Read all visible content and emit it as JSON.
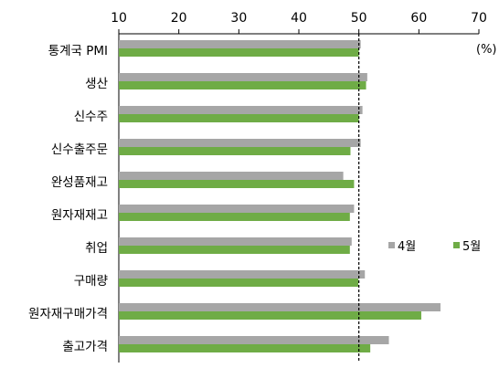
{
  "chart_data": {
    "type": "bar",
    "orientation": "horizontal",
    "unit": "(%)",
    "xlim": [
      10,
      70
    ],
    "xticks": [
      10,
      20,
      30,
      40,
      50,
      60,
      70
    ],
    "categories": [
      "통계국 PMI",
      "생산",
      "신수주",
      "신수출주문",
      "완성품재고",
      "원자재재고",
      "취업",
      "구매량",
      "원자재구매가격",
      "출고가격"
    ],
    "series": [
      {
        "name": "4월",
        "color": "#a6a6a6",
        "values": [
          50.3,
          51.4,
          50.6,
          50.3,
          47.4,
          49.2,
          48.8,
          51.0,
          63.6,
          55.0
        ]
      },
      {
        "name": "5월",
        "color": "#6fac46",
        "values": [
          50.0,
          51.2,
          50.0,
          48.6,
          49.2,
          48.5,
          48.5,
          49.9,
          60.4,
          51.9
        ]
      }
    ],
    "reference_line": {
      "x": 50,
      "style": "dashed"
    },
    "legend": {
      "placement": "right"
    }
  }
}
